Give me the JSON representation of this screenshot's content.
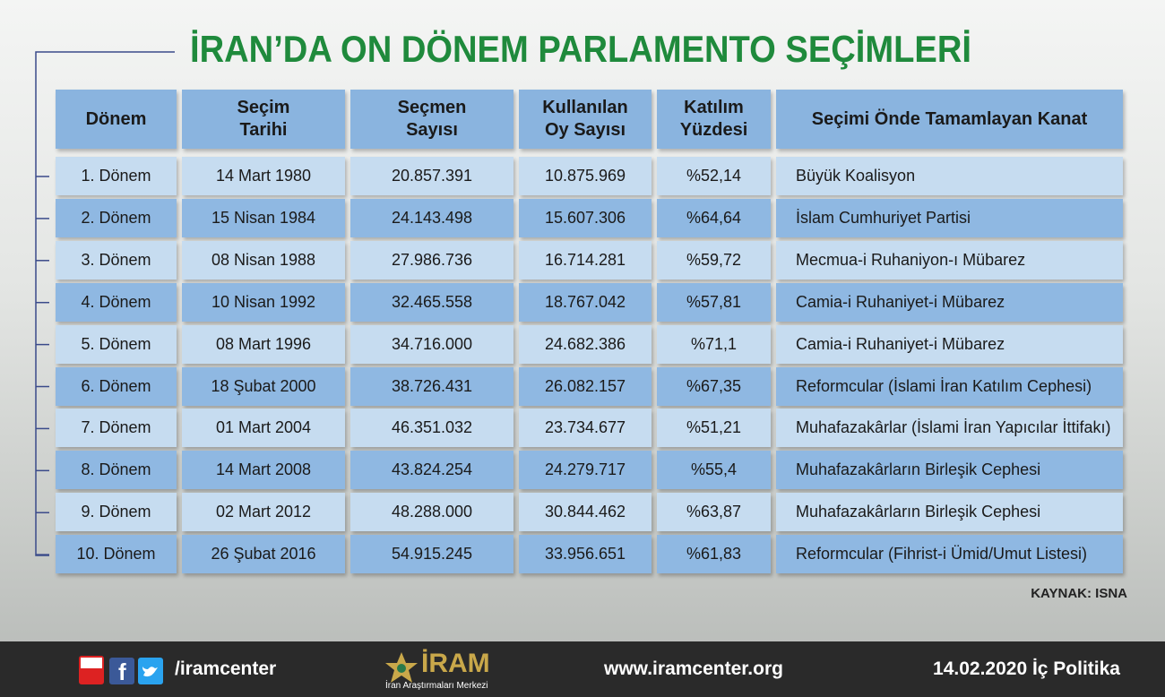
{
  "title": "İRAN’DA ON DÖNEM PARLAMENTO SEÇİMLERİ",
  "table": {
    "header": [
      [
        "Dönem"
      ],
      [
        "Seçim",
        "Tarihi"
      ],
      [
        "Seçmen",
        "Sayısı"
      ],
      [
        "Kullanılan",
        "Oy Sayısı"
      ],
      [
        "Katılım",
        "Yüzdesi"
      ],
      [
        "Seçimi Önde Tamamlayan Kanat"
      ]
    ],
    "rows": [
      [
        "1. Dönem",
        "14 Mart 1980",
        "20.857.391",
        "10.875.969",
        "%52,14",
        "Büyük Koalisyon"
      ],
      [
        "2. Dönem",
        "15 Nisan 1984",
        "24.143.498",
        "15.607.306",
        "%64,64",
        "İslam Cumhuriyet Partisi"
      ],
      [
        "3. Dönem",
        "08 Nisan 1988",
        "27.986.736",
        "16.714.281",
        "%59,72",
        "Mecmua-i Ruhaniyon-ı Mübarez"
      ],
      [
        "4. Dönem",
        "10 Nisan 1992",
        "32.465.558",
        "18.767.042",
        "%57,81",
        "Camia-i Ruhaniyet-i Mübarez"
      ],
      [
        "5. Dönem",
        "08 Mart 1996",
        "34.716.000",
        "24.682.386",
        "%71,1",
        "Camia-i Ruhaniyet-i Mübarez"
      ],
      [
        "6. Dönem",
        "18 Şubat 2000",
        "38.726.431",
        "26.082.157",
        "%67,35",
        "Reformcular (İslami İran Katılım Cephesi)"
      ],
      [
        "7. Dönem",
        "01 Mart 2004",
        "46.351.032",
        "23.734.677",
        "%51,21",
        "Muhafazakârlar (İslami İran Yapıcılar İttifakı)"
      ],
      [
        "8. Dönem",
        "14 Mart 2008",
        "43.824.254",
        "24.279.717",
        "%55,4",
        "Muhafazakârların Birleşik Cephesi"
      ],
      [
        "9. Dönem",
        "02 Mart 2012",
        "48.288.000",
        "30.844.462",
        "%63,87",
        "Muhafazakârların Birleşik Cephesi"
      ],
      [
        "10. Dönem",
        "26 Şubat 2016",
        "54.915.245",
        "33.956.651",
        "%61,83",
        "Reformcular (Fihrist-i Ümid/Umut Listesi)"
      ]
    ]
  },
  "source": "KAYNAK: ISNA",
  "footer": {
    "social": "/iramcenter",
    "logo": "İRAM",
    "logo_subtitle": "İran Araştırmaları Merkezi",
    "website": "www.iramcenter.org",
    "date_category": "14.02.2020 İç Politika"
  }
}
